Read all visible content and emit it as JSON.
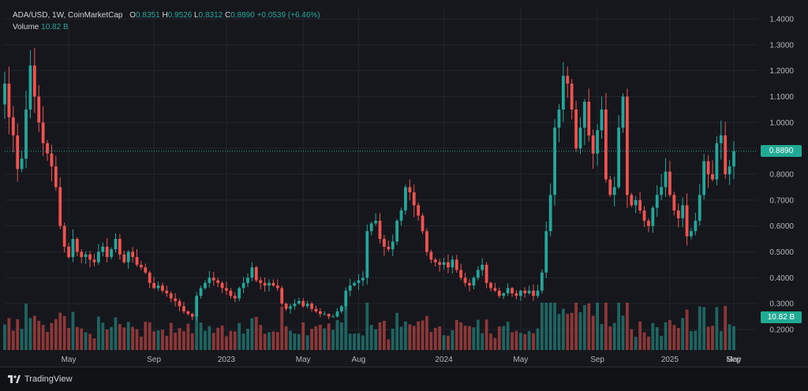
{
  "legend": {
    "symbol": "ADA/USD, 1W, CoinMarketCap",
    "open_label": "O",
    "open": "0.8351",
    "high_label": "H",
    "high": "0.9526",
    "low_label": "L",
    "low": "0.8312",
    "close_label": "C",
    "close": "0.8890",
    "change": "+0.0539 (+6.46%)",
    "volume_label": "Volume",
    "volume": "10.82 B"
  },
  "price_tag": "0.8890",
  "volume_tag": "10.82 B",
  "brand": "TradingView",
  "colors": {
    "up": "#26a69a",
    "down": "#ef5350",
    "background": "#16171c",
    "grid": "#22252e",
    "text": "#b2b5be"
  },
  "chart_data": {
    "type": "candlestick",
    "interval": "1W",
    "series_name": "ADA/USD",
    "y_ticks": [
      "1.4000",
      "1.3000",
      "1.2000",
      "1.1000",
      "1.0000",
      "0.9000",
      "0.8000",
      "0.7000",
      "0.6000",
      "0.5000",
      "0.4000",
      "0.3000",
      "0.2000"
    ],
    "ylim": [
      0.2,
      1.4
    ],
    "x_tick_labels": [
      "May",
      "Sep",
      "2023",
      "May",
      "Aug",
      "2024",
      "May",
      "Sep",
      "2025",
      "May",
      "Sep"
    ],
    "last_close": 0.889,
    "closes": [
      1.15,
      1.02,
      0.95,
      0.82,
      0.86,
      1.05,
      1.22,
      1.1,
      1.0,
      0.92,
      0.88,
      0.83,
      0.75,
      0.6,
      0.52,
      0.48,
      0.55,
      0.5,
      0.48,
      0.49,
      0.47,
      0.46,
      0.5,
      0.52,
      0.48,
      0.51,
      0.55,
      0.49,
      0.46,
      0.5,
      0.48,
      0.45,
      0.44,
      0.42,
      0.38,
      0.36,
      0.37,
      0.35,
      0.34,
      0.32,
      0.31,
      0.29,
      0.27,
      0.26,
      0.25,
      0.33,
      0.36,
      0.38,
      0.4,
      0.39,
      0.38,
      0.36,
      0.35,
      0.33,
      0.32,
      0.36,
      0.38,
      0.4,
      0.44,
      0.39,
      0.38,
      0.37,
      0.38,
      0.37,
      0.36,
      0.3,
      0.28,
      0.29,
      0.3,
      0.31,
      0.29,
      0.3,
      0.28,
      0.27,
      0.26,
      0.26,
      0.25,
      0.25,
      0.27,
      0.29,
      0.35,
      0.37,
      0.38,
      0.39,
      0.4,
      0.58,
      0.61,
      0.62,
      0.55,
      0.52,
      0.51,
      0.54,
      0.62,
      0.66,
      0.75,
      0.73,
      0.68,
      0.64,
      0.58,
      0.5,
      0.47,
      0.46,
      0.45,
      0.46,
      0.44,
      0.47,
      0.43,
      0.4,
      0.38,
      0.37,
      0.4,
      0.43,
      0.45,
      0.38,
      0.36,
      0.35,
      0.33,
      0.34,
      0.36,
      0.34,
      0.33,
      0.35,
      0.34,
      0.35,
      0.33,
      0.35,
      0.42,
      0.58,
      0.72,
      0.98,
      1.05,
      1.18,
      1.15,
      1.05,
      0.9,
      0.98,
      1.08,
      0.95,
      0.88,
      0.97,
      1.05,
      0.78,
      0.72,
      0.75,
      0.98,
      1.1,
      0.72,
      0.68,
      0.7,
      0.66,
      0.62,
      0.6,
      0.67,
      0.72,
      0.75,
      0.81,
      0.72,
      0.66,
      0.63,
      0.68,
      0.56,
      0.58,
      0.62,
      0.72,
      0.85,
      0.8,
      0.78,
      0.92,
      0.95,
      0.8,
      0.83,
      0.889
    ]
  }
}
